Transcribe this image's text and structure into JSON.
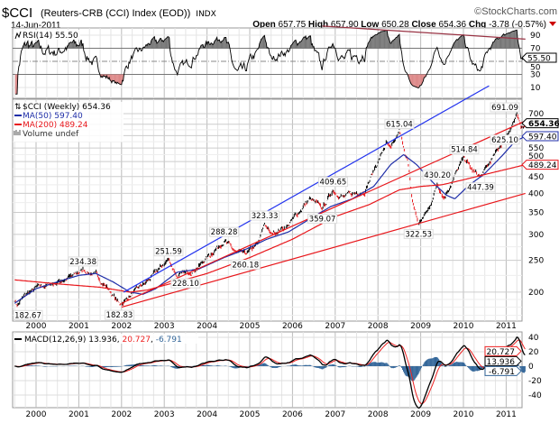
{
  "header": {
    "symbol": "$CCI",
    "name": "(Reuters-CRB (CCI) Index (EOD))",
    "exchange": "INDX",
    "date": "14-Jun-2011",
    "brand": "©StockCharts.com",
    "open_label": "Open",
    "open": "657.75",
    "high_label": "High",
    "high": "657.90",
    "low_label": "Low",
    "low": "650.28",
    "close_label": "Close",
    "close": "654.36",
    "chg_label": "Chg",
    "chg": "-3.78 (-0.57%)"
  },
  "colors": {
    "price_up": "#000000",
    "price_down": "#e8161b",
    "ma50": "#1f2ea8",
    "ma200": "#e8161b",
    "channel": "#2233ee",
    "macd": "#000000",
    "signal": "#ee2222",
    "hist": "#336699",
    "rsi_trend": "#993344"
  },
  "chart_data": [
    {
      "type": "line",
      "title": "RSI(14) 55.50",
      "legend": "RSI(14) 55.50",
      "current_tag": "55.50",
      "yticks": [
        90,
        70,
        50,
        30,
        10
      ],
      "ylim": [
        0,
        100
      ],
      "trendline": [
        [
          2006.7,
          104
        ],
        [
          2011.45,
          84
        ]
      ]
    },
    {
      "type": "candlestick",
      "title": "$CCI (Weekly) 654.36",
      "scale": "log",
      "legend": [
        "$CCI (Weekly) 654.36",
        "MA(50) 597.40",
        "MA(200) 489.24",
        "Volume undef"
      ],
      "yticks": [
        200,
        250,
        300,
        350,
        400,
        450,
        500,
        550,
        600,
        700
      ],
      "ytick_labels": [
        "200",
        "250",
        "300",
        "350",
        "400",
        "450",
        "500",
        "550",
        "",
        "700"
      ],
      "xticks": [
        "2000",
        "2001",
        "2002",
        "2003",
        "2004",
        "2005",
        "2006",
        "2007",
        "2008",
        "2009",
        "2010",
        "2011"
      ],
      "xrange": [
        1999.5,
        2011.45
      ],
      "price_anchors": [
        [
          1999.5,
          190
        ],
        [
          1999.55,
          182.67
        ],
        [
          1999.8,
          198
        ],
        [
          2000.0,
          205
        ],
        [
          2000.5,
          215
        ],
        [
          2000.9,
          225
        ],
        [
          2001.1,
          234.38
        ],
        [
          2001.4,
          225
        ],
        [
          2001.7,
          205
        ],
        [
          2001.95,
          182.83
        ],
        [
          2002.3,
          200
        ],
        [
          2002.6,
          215
        ],
        [
          2003.1,
          251.59
        ],
        [
          2003.3,
          225
        ],
        [
          2003.5,
          228.1
        ],
        [
          2003.8,
          240
        ],
        [
          2004.2,
          270
        ],
        [
          2004.4,
          288.28
        ],
        [
          2004.7,
          262
        ],
        [
          2004.9,
          260.18
        ],
        [
          2005.2,
          280
        ],
        [
          2005.35,
          323.33
        ],
        [
          2005.5,
          300
        ],
        [
          2005.9,
          320
        ],
        [
          2006.4,
          385
        ],
        [
          2006.7,
          359.07
        ],
        [
          2006.95,
          409.65
        ],
        [
          2007.2,
          390
        ],
        [
          2007.7,
          410
        ],
        [
          2008.0,
          500
        ],
        [
          2008.2,
          570
        ],
        [
          2008.3,
          540
        ],
        [
          2008.5,
          615.04
        ],
        [
          2008.7,
          500
        ],
        [
          2008.8,
          380
        ],
        [
          2008.95,
          322.53
        ],
        [
          2009.2,
          360
        ],
        [
          2009.39,
          430.2
        ],
        [
          2009.55,
          390
        ],
        [
          2009.9,
          480
        ],
        [
          2010.02,
          514.84
        ],
        [
          2010.2,
          470
        ],
        [
          2010.4,
          447.39
        ],
        [
          2010.8,
          540
        ],
        [
          2011.0,
          600
        ],
        [
          2011.25,
          691.09
        ],
        [
          2011.35,
          625.1
        ],
        [
          2011.45,
          654.36
        ]
      ],
      "ma50": [
        [
          1999.5,
          185
        ],
        [
          2000.0,
          205
        ],
        [
          2000.5,
          215
        ],
        [
          2001.0,
          225
        ],
        [
          2001.4,
          228
        ],
        [
          2001.8,
          215
        ],
        [
          2002.2,
          200
        ],
        [
          2002.5,
          197
        ],
        [
          2002.8,
          205
        ],
        [
          2003.3,
          230
        ],
        [
          2003.8,
          235
        ],
        [
          2004.4,
          255
        ],
        [
          2004.9,
          270
        ],
        [
          2005.4,
          290
        ],
        [
          2005.9,
          305
        ],
        [
          2006.5,
          340
        ],
        [
          2006.9,
          365
        ],
        [
          2007.4,
          385
        ],
        [
          2007.9,
          420
        ],
        [
          2008.3,
          490
        ],
        [
          2008.6,
          525
        ],
        [
          2008.9,
          490
        ],
        [
          2009.3,
          430
        ],
        [
          2009.6,
          395
        ],
        [
          2009.8,
          385
        ],
        [
          2010.1,
          420
        ],
        [
          2010.5,
          460
        ],
        [
          2010.9,
          520
        ],
        [
          2011.2,
          575
        ],
        [
          2011.45,
          597.4
        ]
      ],
      "ma200": [
        [
          1999.5,
          218
        ],
        [
          2000.5,
          212
        ],
        [
          2001.5,
          207
        ],
        [
          2002.2,
          200
        ],
        [
          2002.6,
          203
        ],
        [
          2003.3,
          215
        ],
        [
          2004.0,
          228
        ],
        [
          2005.0,
          255
        ],
        [
          2006.0,
          290
        ],
        [
          2007.0,
          340
        ],
        [
          2007.8,
          370
        ],
        [
          2008.5,
          410
        ],
        [
          2009.0,
          420
        ],
        [
          2009.5,
          425
        ],
        [
          2010.0,
          440
        ],
        [
          2010.6,
          460
        ],
        [
          2011.45,
          489.24
        ]
      ],
      "trendlines": [
        {
          "color": "channel",
          "points": [
            [
              2002.05,
              200
            ],
            [
              2010.6,
              851
            ]
          ]
        },
        {
          "color": "ma200",
          "points": [
            [
              2002.0,
              185
            ],
            [
              2011.45,
              665
            ]
          ]
        },
        {
          "color": "ma200",
          "points": [
            [
              2002.0,
              180
            ],
            [
              2011.45,
              400
            ]
          ]
        }
      ],
      "annotations": [
        {
          "x": 1999.55,
          "y": 182.67,
          "text": "182.67",
          "pos": "below"
        },
        {
          "x": 2001.1,
          "y": 234.38,
          "text": "234.38",
          "pos": "above"
        },
        {
          "x": 2001.95,
          "y": 182.83,
          "text": "182.83",
          "pos": "below"
        },
        {
          "x": 2003.1,
          "y": 251.59,
          "text": "251.59",
          "pos": "above"
        },
        {
          "x": 2003.5,
          "y": 228.1,
          "text": "228.10",
          "pos": "below"
        },
        {
          "x": 2004.4,
          "y": 288.28,
          "text": "288.28",
          "pos": "above"
        },
        {
          "x": 2004.9,
          "y": 260.18,
          "text": "260.18",
          "pos": "below"
        },
        {
          "x": 2005.35,
          "y": 323.33,
          "text": "323.33",
          "pos": "above"
        },
        {
          "x": 2006.7,
          "y": 359.07,
          "text": "359.07",
          "pos": "below"
        },
        {
          "x": 2006.95,
          "y": 409.65,
          "text": "409.65",
          "pos": "above"
        },
        {
          "x": 2008.5,
          "y": 615.04,
          "text": "615.04",
          "pos": "above"
        },
        {
          "x": 2008.95,
          "y": 322.53,
          "text": "322.53",
          "pos": "below"
        },
        {
          "x": 2009.39,
          "y": 430.2,
          "text": "430.20",
          "pos": "above"
        },
        {
          "x": 2010.02,
          "y": 514.84,
          "text": "514.84",
          "pos": "above"
        },
        {
          "x": 2010.4,
          "y": 447.39,
          "text": "447.39",
          "pos": "below"
        },
        {
          "x": 2011.25,
          "y": 691.09,
          "text": "691.09",
          "pos": "above"
        },
        {
          "x": 2011.35,
          "y": 625.1,
          "text": "625.10",
          "pos": "below"
        }
      ],
      "tags": [
        {
          "text": "654.36",
          "value": 654.36,
          "color": "price_up"
        },
        {
          "text": "597.40",
          "value": 597.4,
          "color": "ma50"
        },
        {
          "text": "489.24",
          "value": 489.24,
          "color": "ma200"
        }
      ]
    },
    {
      "type": "line",
      "title": "MACD(12,26,9)",
      "legend": {
        "name": "MACD(12,26,9)",
        "macd": "13.936",
        "signal": "20.727",
        "hist": "-6.791"
      },
      "yticks": [
        40,
        20,
        0,
        -20,
        -40
      ],
      "ylim": [
        -55,
        45
      ],
      "tags": [
        {
          "text": "20.727",
          "value": 20.727,
          "color": "signal"
        },
        {
          "text": "13.936",
          "value": 13.936,
          "color": "macd"
        },
        {
          "text": "-6.791",
          "value": -6.791,
          "color": "hist"
        }
      ]
    }
  ]
}
